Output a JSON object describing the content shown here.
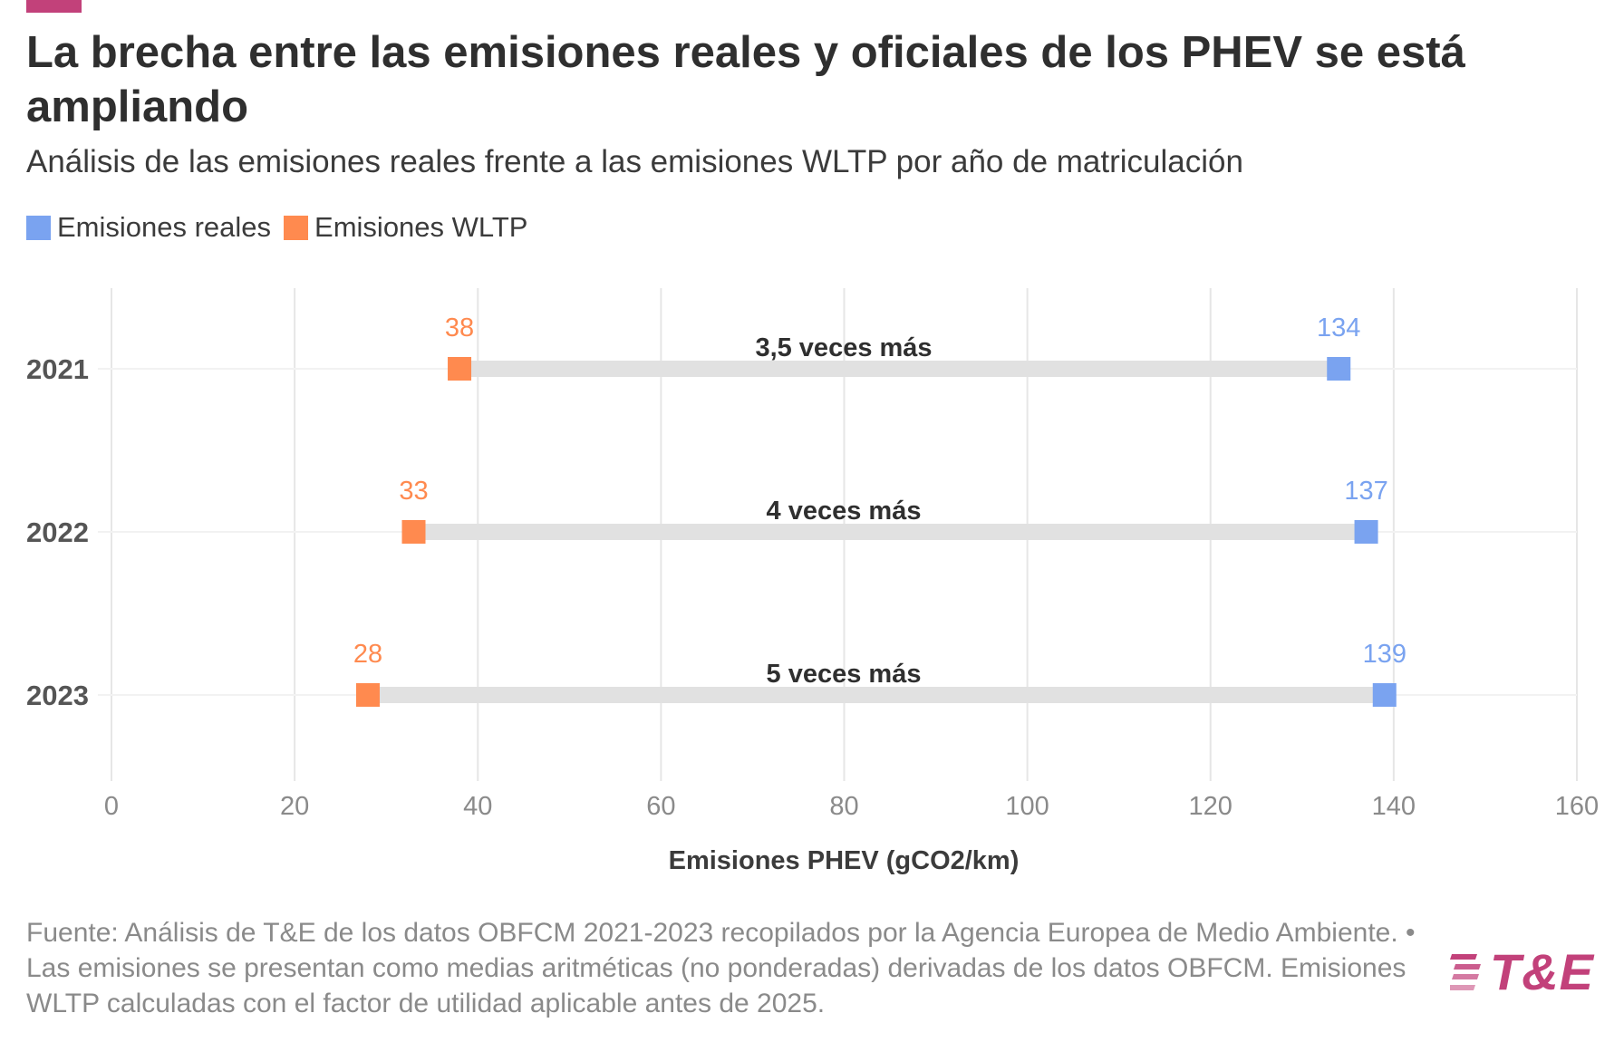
{
  "header": {
    "title": "La brecha entre las emisiones reales y oficiales de los PHEV se está ampliando",
    "subtitle": "Análisis de las emisiones reales frente a las emisiones WLTP por año de matriculación",
    "accent_color": "#c2417a"
  },
  "legend": [
    {
      "label": "Emisiones reales",
      "color": "#7aa3f0"
    },
    {
      "label": "Emisiones WLTP",
      "color": "#ff8a4f"
    }
  ],
  "chart_data": {
    "type": "dot-range",
    "xlabel": "Emisiones PHEV (gCO2/km)",
    "xlim": [
      0,
      160
    ],
    "xticks": [
      0,
      20,
      40,
      60,
      80,
      100,
      120,
      140,
      160
    ],
    "grid": "vertical",
    "legend_position": "top-left",
    "categories": [
      "2021",
      "2022",
      "2023"
    ],
    "series": [
      {
        "name": "Emisiones reales",
        "color": "#7aa3f0",
        "values": [
          134,
          137,
          139
        ]
      },
      {
        "name": "Emisiones WLTP",
        "color": "#ff8a4f",
        "values": [
          38,
          33,
          28
        ]
      }
    ],
    "annotations": [
      "3,5 veces más",
      "4 veces más",
      "5 veces más"
    ]
  },
  "footer": {
    "source": "Fuente: Análisis de T&E de los datos OBFCM 2021-2023 recopilados por la Agencia Europea de Medio Ambiente. • Las emisiones se presentan como medias aritméticas (no ponderadas) derivadas de los datos OBFCM. Emisiones WLTP calculadas con el factor de utilidad aplicable antes de 2025."
  },
  "logo": {
    "text": "T&E",
    "icon": "te-stripes-icon",
    "color": "#c2417a"
  }
}
